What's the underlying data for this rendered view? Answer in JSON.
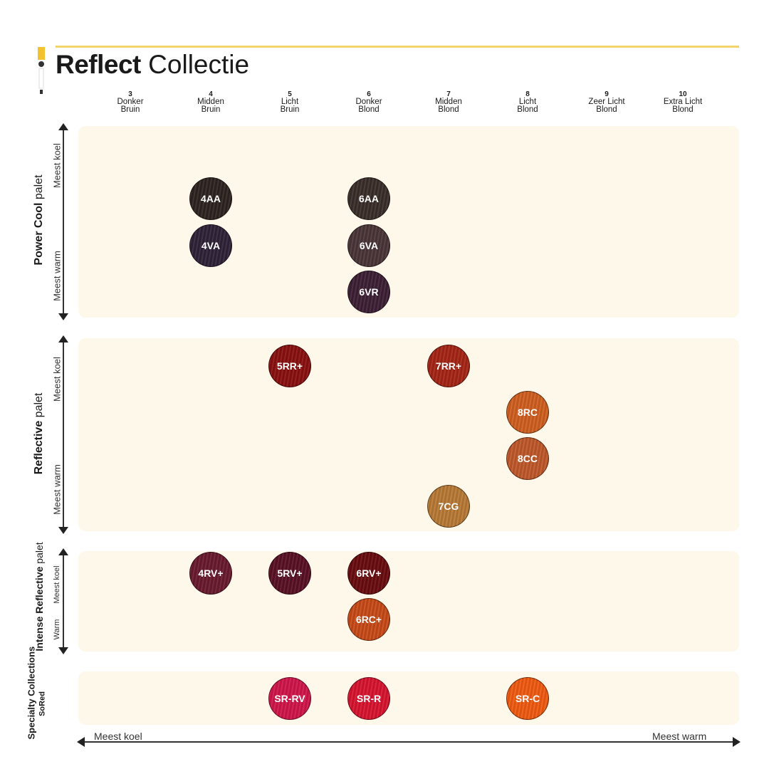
{
  "title": {
    "bold": "Reflect",
    "light": "Collectie"
  },
  "columns": [
    {
      "n": "3",
      "l1": "Donker",
      "l2": "Bruin"
    },
    {
      "n": "4",
      "l1": "Midden",
      "l2": "Bruin"
    },
    {
      "n": "5",
      "l1": "Licht",
      "l2": "Bruin"
    },
    {
      "n": "6",
      "l1": "Donker",
      "l2": "Blond"
    },
    {
      "n": "7",
      "l1": "Midden",
      "l2": "Blond"
    },
    {
      "n": "8",
      "l1": "Licht",
      "l2": "Blond"
    },
    {
      "n": "9",
      "l1": "Zeer Licht",
      "l2": "Blond"
    },
    {
      "n": "10",
      "l1": "Extra Licht",
      "l2": "Blond"
    }
  ],
  "palettes": [
    {
      "bold": "Power Cool",
      "light": "palet",
      "top": "Meest koel",
      "bottom": "Meest warm"
    },
    {
      "bold": "Reflective",
      "light": "palet",
      "top": "Meest koel",
      "bottom": "Meest warm"
    },
    {
      "bold": "Intense Reflective",
      "light": "palet",
      "top": "Meest koel",
      "bottom": "Warm"
    },
    {
      "bold": "Specialty Collections",
      "sub": "SoRed"
    }
  ],
  "axis": {
    "left": "Meest koel",
    "right": "Meest warm"
  },
  "swatches": [
    {
      "code": "4AA",
      "level": 4,
      "color": "#2e2420"
    },
    {
      "code": "4VA",
      "level": 4,
      "color": "#2f2238"
    },
    {
      "code": "6AA",
      "level": 6,
      "color": "#3a2e2a"
    },
    {
      "code": "6VA",
      "level": 6,
      "color": "#4a3538"
    },
    {
      "code": "6VR",
      "level": 6,
      "color": "#3d1f35"
    },
    {
      "code": "5RR+",
      "level": 5,
      "color": "#8a1010"
    },
    {
      "code": "7RR+",
      "level": 7,
      "color": "#a52515"
    },
    {
      "code": "8RC",
      "level": 8,
      "color": "#d06020"
    },
    {
      "code": "8CC",
      "level": 8,
      "color": "#c0582a"
    },
    {
      "code": "7CG",
      "level": 7,
      "color": "#b87a35"
    },
    {
      "code": "4RV+",
      "level": 4,
      "color": "#6a1a2e"
    },
    {
      "code": "5RV+",
      "level": 5,
      "color": "#5a1025"
    },
    {
      "code": "6RV+",
      "level": 6,
      "color": "#6a0c10"
    },
    {
      "code": "6RC+",
      "level": 6,
      "color": "#c84a18"
    },
    {
      "code": "SR-RV",
      "level": 5,
      "color": "#d0164a"
    },
    {
      "code": "SR-R",
      "level": 6,
      "color": "#d81430"
    },
    {
      "code": "SR-C",
      "level": 8,
      "color": "#f05a10"
    }
  ]
}
